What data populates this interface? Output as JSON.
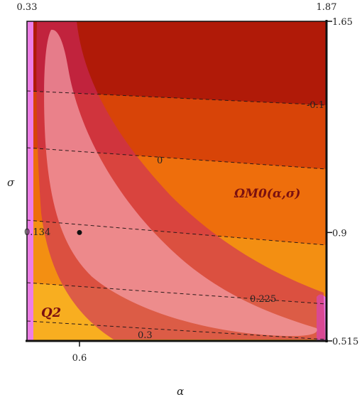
{
  "chart_data": {
    "type": "contour",
    "xlabel": "α",
    "ylabel": "σ",
    "xlim": [
      0.33,
      1.87
    ],
    "ylim": [
      0.515,
      1.65
    ],
    "x_ticks": [
      {
        "value": 0.6,
        "label": "0.6"
      }
    ],
    "top_edge_labels": [
      {
        "value": 0.33,
        "label": "0.33"
      },
      {
        "value": 1.87,
        "label": "1.87"
      }
    ],
    "y_ticks_right": [
      {
        "value": 1.65,
        "label": "1.65"
      },
      {
        "value": 0.9,
        "label": "0.9"
      },
      {
        "value": 0.515,
        "label": "0.515"
      }
    ],
    "contour_levels": [
      {
        "value": -0.1,
        "label": "-0.1"
      },
      {
        "value": 0,
        "label": "0"
      },
      {
        "value": 0.134,
        "label": "0.134"
      },
      {
        "value": 0.225,
        "label": "0.225"
      },
      {
        "value": 0.3,
        "label": "0.3"
      }
    ],
    "band_colors": [
      "#b01a08",
      "#d84408",
      "#ee6e0c",
      "#f38f12",
      "#f8ae20"
    ],
    "confidence_region_colors": {
      "outer": "#cc2a5e",
      "inner": "#ee8a9a"
    },
    "best_fit_point": {
      "alpha": 0.6,
      "sigma": 0.9
    },
    "annotations": {
      "function_label": "ΩM0(α,σ)",
      "region_label": "Q2"
    }
  }
}
